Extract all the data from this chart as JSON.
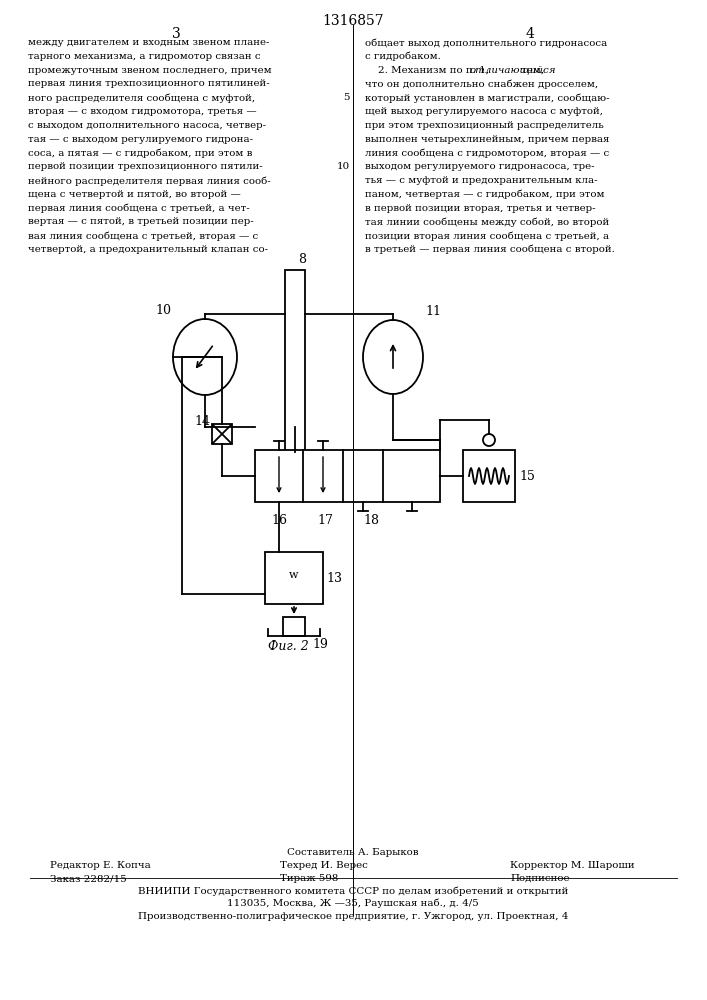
{
  "title": "1316857",
  "page_col1_header": "3",
  "page_col2_header": "4",
  "col1_lines": [
    "между двигателем и входным звеном плане-",
    "тарного механизма, а гидромотор связан с",
    "промежуточным звеном последнего, причем",
    "первая линия трехпозиционного пятилиней-",
    "ного распределителя сообщена с муфтой,",
    "вторая — с входом гидромотора, третья —",
    "с выходом дополнительного насоса, четвер-",
    "тая — с выходом регулируемого гидрона-",
    "соса, а пятая — с гидробаком, при этом в",
    "первой позиции трехпозиционного пятили-",
    "нейного распределителя первая линия сооб-",
    "щена с четвертой и пятой, во второй —",
    "первая линия сообщена с третьей, а чет-",
    "вертая — с пятой, в третьей позиции пер-",
    "вая линия сообщена с третьей, вторая — с",
    "четвертой, а предохранительный клапан со-"
  ],
  "col2_lines": [
    "общает выход дополнительного гидронасоса",
    "с гидробаком.",
    "    2. Механизм по п. 1, ^отличающийся^ тем,",
    "что он дополнительно снабжен дросселем,",
    "который установлен в магистрали, сообщаю-",
    "щей выход регулируемого насоса с муфтой,",
    "при этом трехпозиционный распределитель",
    "выполнен четырехлинейным, причем первая",
    "линия сообщена с гидромотором, вторая — с",
    "выходом регулируемого гидронасоса, тре-",
    "тья — с муфтой и предохранительным кла-",
    "паном, четвертая — с гидробаком, при этом",
    "в первой позиции вторая, третья и четвер-",
    "тая линии сообщены между собой, во второй",
    "позиции вторая линия сообщена с третьей, а",
    "в третьей — первая линия сообщена с второй."
  ],
  "line_num_5": "5",
  "line_num_10": "10",
  "fig_label": "Фиг. 2",
  "footer_composer": "Составитель А. Барыков",
  "footer_editor": "Редактор Е. Копча",
  "footer_tech": "Техред И. Верес",
  "footer_corrector": "Корректор М. Шароши",
  "footer_order": "Заказ 2282/15",
  "footer_tirazh": "Тираж 598",
  "footer_podpisnoe": "Подписное",
  "footer_org": "ВНИИПИ Государственного комитета СССР по делам изобретений и открытий",
  "footer_address": "113035, Москва, Ж —35, Раушская наб., д. 4/5",
  "footer_plant": "Производственно-полиграфическое предприятие, г. Ужгород, ул. Проектная, 4",
  "bg_color": "#ffffff",
  "text_color": "#000000",
  "line_color": "#000000"
}
